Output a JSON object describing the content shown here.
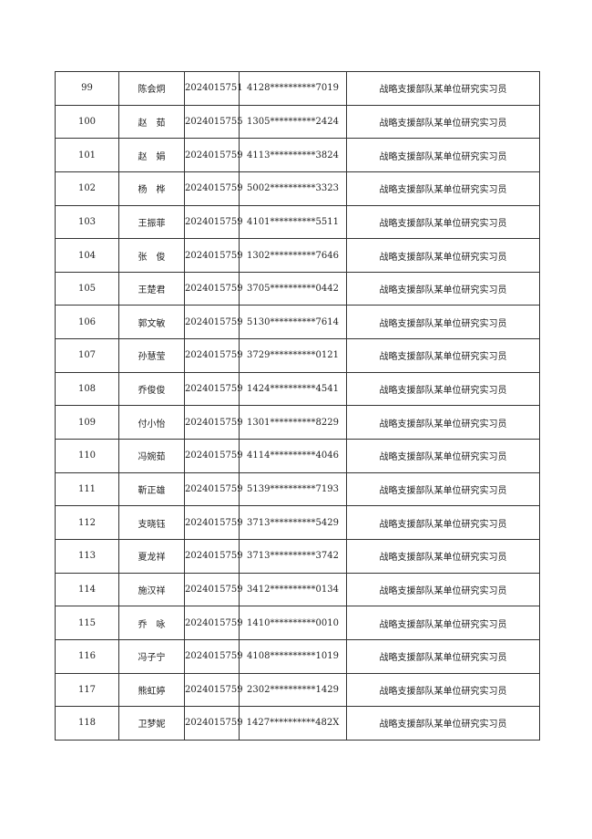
{
  "table": {
    "rows": [
      [
        "99",
        "陈会炯",
        "2024015751",
        "4128**********7019",
        "战略支援部队某单位研究实习员"
      ],
      [
        "100",
        "赵　茹",
        "2024015755",
        "1305**********2424",
        "战略支援部队某单位研究实习员"
      ],
      [
        "101",
        "赵　娟",
        "2024015759",
        "4113**********3824",
        "战略支援部队某单位研究实习员"
      ],
      [
        "102",
        "杨　桦",
        "2024015759",
        "5002**********3323",
        "战略支援部队某单位研究实习员"
      ],
      [
        "103",
        "王振菲",
        "2024015759",
        "4101**********5511",
        "战略支援部队某单位研究实习员"
      ],
      [
        "104",
        "张　俊",
        "2024015759",
        "1302**********7646",
        "战略支援部队某单位研究实习员"
      ],
      [
        "105",
        "王楚君",
        "2024015759",
        "3705**********0442",
        "战略支援部队某单位研究实习员"
      ],
      [
        "106",
        "郭文敏",
        "2024015759",
        "5130**********7614",
        "战略支援部队某单位研究实习员"
      ],
      [
        "107",
        "孙慧莹",
        "2024015759",
        "3729**********0121",
        "战略支援部队某单位研究实习员"
      ],
      [
        "108",
        "乔俊俊",
        "2024015759",
        "1424**********4541",
        "战略支援部队某单位研究实习员"
      ],
      [
        "109",
        "付小怡",
        "2024015759",
        "1301**********8229",
        "战略支援部队某单位研究实习员"
      ],
      [
        "110",
        "冯婉茹",
        "2024015759",
        "4114**********4046",
        "战略支援部队某单位研究实习员"
      ],
      [
        "111",
        "靳正雄",
        "2024015759",
        "5139**********7193",
        "战略支援部队某单位研究实习员"
      ],
      [
        "112",
        "支晓钰",
        "2024015759",
        "3713**********5429",
        "战略支援部队某单位研究实习员"
      ],
      [
        "113",
        "夏龙祥",
        "2024015759",
        "3713**********3742",
        "战略支援部队某单位研究实习员"
      ],
      [
        "114",
        "施汉祥",
        "2024015759",
        "3412**********0134",
        "战略支援部队某单位研究实习员"
      ],
      [
        "115",
        "乔　咏",
        "2024015759",
        "1410**********0010",
        "战略支援部队某单位研究实习员"
      ],
      [
        "116",
        "冯子宁",
        "2024015759",
        "4108**********1019",
        "战略支援部队某单位研究实习员"
      ],
      [
        "117",
        "熊虹婷",
        "2024015759",
        "2302**********1429",
        "战略支援部队某单位研究实习员"
      ],
      [
        "118",
        "卫梦妮",
        "2024015759",
        "1427**********482X",
        "战略支援部队某单位研究实习员"
      ]
    ]
  }
}
